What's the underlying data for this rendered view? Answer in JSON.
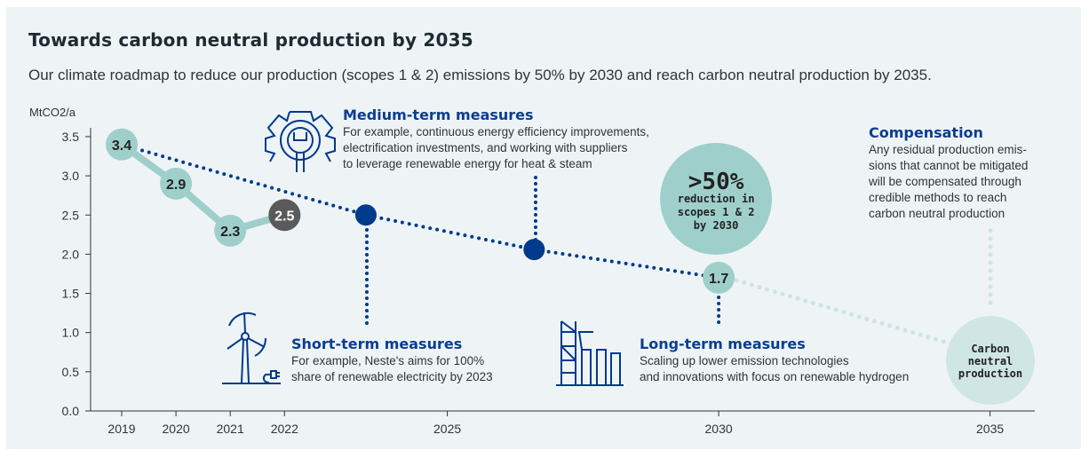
{
  "title": "Towards carbon neutral production by 2035",
  "subtitle": "Our climate roadmap to reduce our production (scopes 1 & 2) emissions by 50% by 2030 and reach carbon neutral production by 2035.",
  "colors": {
    "actual": "#9fcfcb",
    "latest": "#5a5a5a",
    "target": "#003a8c",
    "future": "#cde4e4",
    "background": "#eef4f6"
  },
  "chart_data": {
    "type": "line",
    "ylabel": "MtCO2/a",
    "ylim": [
      0,
      3.5
    ],
    "yticks": [
      "0.0",
      "0.5",
      "1.0",
      "1.5",
      "2.0",
      "2.5",
      "3.0",
      "3.5"
    ],
    "xticks": [
      "2019",
      "2020",
      "2021",
      "2022",
      "2025",
      "2030",
      "2035"
    ],
    "series": [
      {
        "points": [
          {
            "x": 2019,
            "y": 3.4,
            "label": "3.4"
          },
          {
            "x": 2020,
            "y": 2.9,
            "label": "2.9"
          },
          {
            "x": 2021,
            "y": 2.3,
            "label": "2.3"
          },
          {
            "x": 2022,
            "y": 2.5,
            "label": "2.5"
          }
        ]
      },
      {
        "points": [
          {
            "x": 2019,
            "y": 3.4
          },
          {
            "x": 2023.5,
            "y": 2.5
          },
          {
            "x": 2026.6,
            "y": 2.06
          },
          {
            "x": 2030,
            "y": 1.7,
            "label": "1.7"
          }
        ]
      },
      {
        "points": [
          {
            "x": 2030,
            "y": 1.7
          },
          {
            "x": 2035,
            "y": 0.9
          }
        ]
      }
    ],
    "milestone_2035": "Carbon neutral production",
    "callout_2030": {
      "big": ">50%",
      "lines": [
        "reduction in",
        "scopes 1 & 2",
        "by 2030"
      ]
    }
  },
  "annotations": {
    "medium": {
      "heading": "Medium-term measures",
      "lines": [
        "For example, continuous energy efficiency improvements,",
        "electrification investments, and working with suppliers",
        "to leverage renewable energy for heat & steam"
      ],
      "icon": "gear-wrench-icon"
    },
    "short": {
      "heading": "Short-term measures",
      "lines": [
        "For example, Neste's aims for 100%",
        "share of renewable electricity by 2023"
      ],
      "icon": "wind-turbine-icon"
    },
    "long": {
      "heading": "Long-term measures",
      "lines": [
        "Scaling up lower emission technologies",
        "and innovations with focus on renewable hydrogen"
      ],
      "icon": "refinery-icon"
    },
    "compensation": {
      "heading": "Compensation",
      "lines": [
        "Any residual production emis-",
        "sions that cannot be mitigated",
        "will be compensated through",
        "credible methods to reach",
        "carbon neutral production"
      ]
    }
  }
}
